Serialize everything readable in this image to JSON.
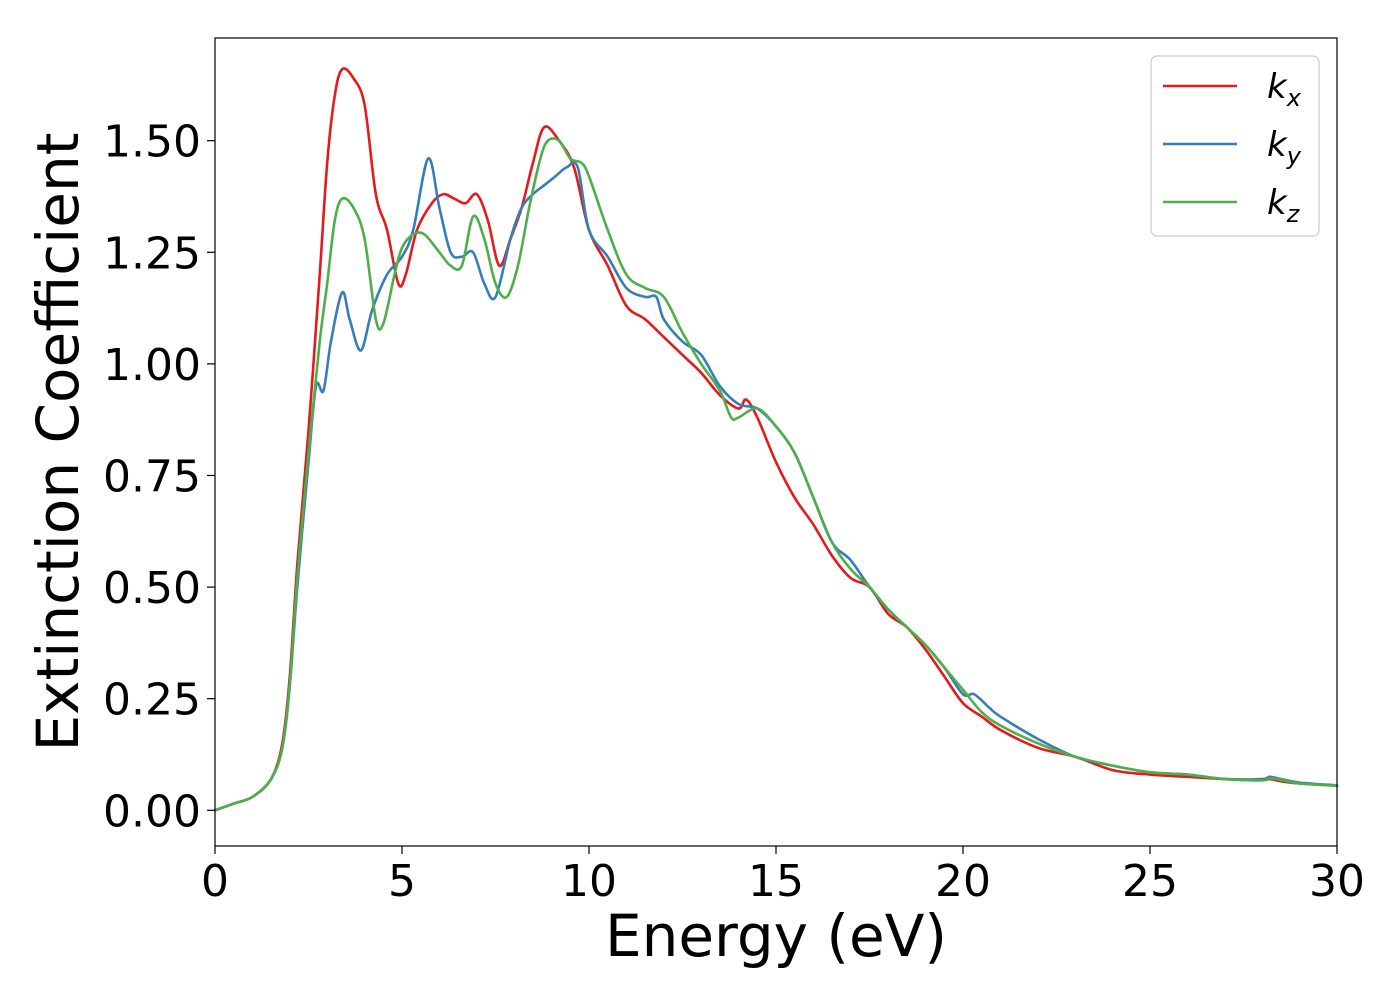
{
  "chart_data": {
    "type": "line",
    "title": "",
    "xlabel": "Energy (eV)",
    "ylabel": "Extinction Coefficient",
    "xlim": [
      0,
      30
    ],
    "ylim": [
      -0.08,
      1.73
    ],
    "xticks": [
      0,
      5,
      10,
      15,
      20,
      25,
      30
    ],
    "xtick_labels": [
      "0",
      "5",
      "10",
      "15",
      "20",
      "25",
      "30"
    ],
    "yticks": [
      0.0,
      0.25,
      0.5,
      0.75,
      1.0,
      1.25,
      1.5
    ],
    "ytick_labels": [
      "0.00",
      "0.25",
      "0.50",
      "0.75",
      "1.00",
      "1.25",
      "1.50"
    ],
    "grid": false,
    "legend_position": "top-right",
    "series": [
      {
        "name": "k_x",
        "label_base": "k",
        "label_sub": "x",
        "color": "#e41a1c",
        "x": [
          0,
          0.5,
          1.0,
          1.5,
          1.8,
          2.0,
          2.2,
          2.5,
          2.8,
          3.0,
          3.2,
          3.4,
          3.7,
          4.0,
          4.3,
          4.6,
          4.9,
          5.1,
          5.4,
          5.8,
          6.1,
          6.4,
          6.7,
          7.0,
          7.3,
          7.6,
          7.9,
          8.2,
          8.5,
          8.8,
          9.2,
          9.6,
          10.0,
          10.5,
          11.0,
          11.5,
          12.0,
          12.5,
          13.0,
          13.5,
          14.0,
          14.2,
          14.5,
          15.0,
          15.5,
          16.0,
          16.5,
          17.0,
          17.5,
          18.0,
          18.5,
          19.0,
          19.5,
          20.0,
          20.5,
          21.0,
          22.0,
          23.0,
          24.0,
          25.0,
          26.0,
          27.0,
          28.0,
          28.2,
          28.5,
          29.0,
          30.0
        ],
        "y": [
          0.0,
          0.015,
          0.03,
          0.07,
          0.15,
          0.3,
          0.55,
          0.85,
          1.2,
          1.45,
          1.6,
          1.66,
          1.64,
          1.58,
          1.38,
          1.3,
          1.18,
          1.2,
          1.3,
          1.36,
          1.38,
          1.37,
          1.36,
          1.38,
          1.32,
          1.22,
          1.28,
          1.35,
          1.45,
          1.53,
          1.5,
          1.44,
          1.3,
          1.22,
          1.13,
          1.1,
          1.06,
          1.02,
          0.98,
          0.93,
          0.9,
          0.92,
          0.88,
          0.78,
          0.7,
          0.64,
          0.57,
          0.52,
          0.5,
          0.44,
          0.41,
          0.36,
          0.3,
          0.24,
          0.21,
          0.18,
          0.14,
          0.12,
          0.09,
          0.08,
          0.075,
          0.07,
          0.068,
          0.07,
          0.065,
          0.06,
          0.055
        ]
      },
      {
        "name": "k_y",
        "label_base": "k",
        "label_sub": "y",
        "color": "#377eb8",
        "x": [
          0,
          0.5,
          1.0,
          1.5,
          1.8,
          2.0,
          2.2,
          2.5,
          2.7,
          2.9,
          3.1,
          3.4,
          3.6,
          3.9,
          4.2,
          4.6,
          5.0,
          5.3,
          5.7,
          6.0,
          6.3,
          6.6,
          6.9,
          7.2,
          7.5,
          7.9,
          8.2,
          8.5,
          8.8,
          9.1,
          9.4,
          9.7,
          10.0,
          10.5,
          11.0,
          11.5,
          11.8,
          12.0,
          12.5,
          13.0,
          13.5,
          14.0,
          14.5,
          15.0,
          15.5,
          16.0,
          16.5,
          17.0,
          17.5,
          18.0,
          18.5,
          19.0,
          19.5,
          20.0,
          20.3,
          20.7,
          21.0,
          22.0,
          23.0,
          24.0,
          25.0,
          26.0,
          27.0,
          28.0,
          28.2,
          28.5,
          29.0,
          30.0
        ],
        "y": [
          0.0,
          0.015,
          0.03,
          0.07,
          0.14,
          0.28,
          0.5,
          0.78,
          0.95,
          0.94,
          1.05,
          1.16,
          1.1,
          1.03,
          1.12,
          1.2,
          1.24,
          1.3,
          1.46,
          1.35,
          1.25,
          1.24,
          1.25,
          1.18,
          1.15,
          1.28,
          1.35,
          1.38,
          1.4,
          1.42,
          1.44,
          1.44,
          1.3,
          1.24,
          1.17,
          1.15,
          1.15,
          1.1,
          1.05,
          1.02,
          0.95,
          0.91,
          0.9,
          0.86,
          0.8,
          0.7,
          0.6,
          0.56,
          0.5,
          0.45,
          0.41,
          0.37,
          0.32,
          0.26,
          0.26,
          0.23,
          0.21,
          0.16,
          0.12,
          0.1,
          0.085,
          0.08,
          0.07,
          0.07,
          0.075,
          0.07,
          0.062,
          0.056
        ]
      },
      {
        "name": "k_z",
        "label_base": "k",
        "label_sub": "z",
        "color": "#4daf4a",
        "x": [
          0,
          0.5,
          1.0,
          1.5,
          1.8,
          2.0,
          2.2,
          2.5,
          2.8,
          3.0,
          3.2,
          3.4,
          3.7,
          4.0,
          4.3,
          4.5,
          4.8,
          5.0,
          5.3,
          5.6,
          6.0,
          6.3,
          6.6,
          6.9,
          7.2,
          7.5,
          7.8,
          8.1,
          8.4,
          8.7,
          8.9,
          9.2,
          9.5,
          9.8,
          10.0,
          10.5,
          11.0,
          11.5,
          12.0,
          12.5,
          13.0,
          13.5,
          13.8,
          14.0,
          14.5,
          15.0,
          15.5,
          16.0,
          16.5,
          17.0,
          17.5,
          18.0,
          18.5,
          19.0,
          19.5,
          20.0,
          20.5,
          21.0,
          22.0,
          23.0,
          24.0,
          25.0,
          26.0,
          27.0,
          28.0,
          28.2,
          28.5,
          29.0,
          30.0
        ],
        "y": [
          0.0,
          0.015,
          0.03,
          0.07,
          0.14,
          0.28,
          0.52,
          0.8,
          1.05,
          1.18,
          1.32,
          1.37,
          1.35,
          1.28,
          1.1,
          1.09,
          1.2,
          1.26,
          1.29,
          1.29,
          1.25,
          1.22,
          1.22,
          1.33,
          1.28,
          1.18,
          1.15,
          1.22,
          1.35,
          1.46,
          1.5,
          1.5,
          1.46,
          1.45,
          1.42,
          1.3,
          1.2,
          1.17,
          1.15,
          1.07,
          1.0,
          0.94,
          0.88,
          0.88,
          0.9,
          0.86,
          0.8,
          0.7,
          0.6,
          0.54,
          0.5,
          0.45,
          0.41,
          0.37,
          0.32,
          0.27,
          0.22,
          0.19,
          0.15,
          0.12,
          0.1,
          0.085,
          0.08,
          0.07,
          0.067,
          0.072,
          0.068,
          0.06,
          0.055
        ]
      }
    ]
  }
}
